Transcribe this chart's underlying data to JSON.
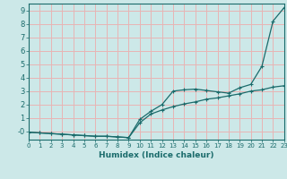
{
  "xlabel": "Humidex (Indice chaleur)",
  "xlim": [
    0,
    23
  ],
  "ylim": [
    -0.6,
    9.5
  ],
  "xticks": [
    0,
    1,
    2,
    3,
    4,
    5,
    6,
    7,
    8,
    9,
    10,
    11,
    12,
    13,
    14,
    15,
    16,
    17,
    18,
    19,
    20,
    21,
    22,
    23
  ],
  "yticks": [
    0,
    1,
    2,
    3,
    4,
    5,
    6,
    7,
    8,
    9
  ],
  "background_color": "#cce8e8",
  "grid_color": "#e8b4b4",
  "line_color": "#1a6b6b",
  "curve1_x": [
    0,
    1,
    2,
    3,
    4,
    5,
    6,
    7,
    8,
    9,
    10,
    11,
    12,
    13,
    14,
    15,
    16,
    17,
    18,
    19,
    20,
    21,
    22,
    23
  ],
  "curve1_y": [
    -0.05,
    -0.1,
    -0.15,
    -0.2,
    -0.25,
    -0.3,
    -0.35,
    -0.35,
    -0.4,
    -0.45,
    0.65,
    1.3,
    1.6,
    1.85,
    2.05,
    2.2,
    2.4,
    2.5,
    2.65,
    2.8,
    3.0,
    3.1,
    3.3,
    3.4
  ],
  "curve2_x": [
    0,
    1,
    2,
    3,
    4,
    5,
    6,
    7,
    8,
    9,
    10,
    11,
    12,
    13,
    14,
    15,
    16,
    17,
    18,
    19,
    20,
    21,
    22,
    23
  ],
  "curve2_y": [
    -0.05,
    -0.1,
    -0.15,
    -0.2,
    -0.25,
    -0.3,
    -0.35,
    -0.35,
    -0.4,
    -0.45,
    0.9,
    1.5,
    2.0,
    3.0,
    3.1,
    3.15,
    3.05,
    2.95,
    2.85,
    3.25,
    3.5,
    4.85,
    8.2,
    9.2
  ]
}
